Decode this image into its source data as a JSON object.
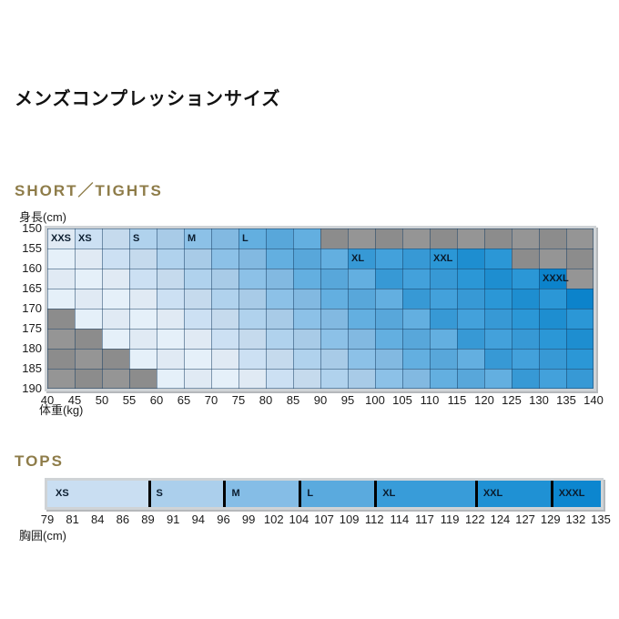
{
  "title": "メンズコンプレッションサイズ",
  "na_color": "#8f8f8f",
  "sizes": [
    {
      "name": "XXS",
      "color": "#e4eff9"
    },
    {
      "name": "XS",
      "color": "#c9def2"
    },
    {
      "name": "S",
      "color": "#abcfec"
    },
    {
      "name": "M",
      "color": "#85bde6"
    },
    {
      "name": "L",
      "color": "#5aaade"
    },
    {
      "name": "XL",
      "color": "#389cd9"
    },
    {
      "name": "XXL",
      "color": "#1f91d4"
    },
    {
      "name": "XXXL",
      "color": "#0c86cf"
    }
  ],
  "short_tights": {
    "heading": "SHORT／TIGHTS",
    "y_axis_label": "身長(cm)",
    "x_axis_label": "体重(kg)"
  },
  "tops": {
    "heading": "TOPS",
    "x_axis_label": "胸囲(cm)"
  },
  "chart_data": [
    {
      "id": "short_tights",
      "type": "heatmap",
      "title": "SHORT／TIGHTS",
      "xlabel": "体重(kg)",
      "ylabel": "身長(cm)",
      "x_ticks": [
        40,
        45,
        50,
        55,
        60,
        65,
        70,
        75,
        80,
        85,
        90,
        95,
        100,
        105,
        110,
        115,
        120,
        125,
        130,
        135,
        140
      ],
      "y_ticks": [
        150,
        155,
        160,
        165,
        170,
        175,
        180,
        185,
        190
      ],
      "legend": [
        "XXS",
        "XS",
        "S",
        "M",
        "L",
        "XL",
        "XXL",
        "XXXL"
      ],
      "na_meaning": "no size available (gray)",
      "rows": [
        {
          "height": "150-155",
          "segments": [
            [
              "XXS",
              40,
              45
            ],
            [
              "XS",
              45,
              55
            ],
            [
              "S",
              55,
              65
            ],
            [
              "M",
              65,
              75
            ],
            [
              "L",
              75,
              90
            ],
            [
              "NA",
              90,
              140
            ]
          ]
        },
        {
          "height": "155-160",
          "segments": [
            [
              "XXS",
              40,
              50
            ],
            [
              "XS",
              50,
              60
            ],
            [
              "S",
              60,
              70
            ],
            [
              "M",
              70,
              80
            ],
            [
              "L",
              80,
              95
            ],
            [
              "XL",
              95,
              110
            ],
            [
              "XXL",
              110,
              125
            ],
            [
              "NA",
              125,
              140
            ]
          ]
        },
        {
          "height": "160-165",
          "segments": [
            [
              "XXS",
              40,
              55
            ],
            [
              "XS",
              55,
              65
            ],
            [
              "S",
              65,
              75
            ],
            [
              "M",
              75,
              85
            ],
            [
              "L",
              85,
              100
            ],
            [
              "XL",
              100,
              115
            ],
            [
              "XXL",
              115,
              130
            ],
            [
              "XXXL",
              130,
              135
            ],
            [
              "NA",
              135,
              140
            ]
          ]
        },
        {
          "height": "165-170",
          "segments": [
            [
              "XXS",
              40,
              60
            ],
            [
              "XS",
              60,
              70
            ],
            [
              "S",
              70,
              80
            ],
            [
              "M",
              80,
              90
            ],
            [
              "L",
              90,
              105
            ],
            [
              "XL",
              105,
              120
            ],
            [
              "XXL",
              120,
              135
            ],
            [
              "XXXL",
              135,
              140
            ]
          ]
        },
        {
          "height": "170-175",
          "segments": [
            [
              "NA",
              40,
              45
            ],
            [
              "XXS",
              45,
              65
            ],
            [
              "XS",
              65,
              75
            ],
            [
              "S",
              75,
              85
            ],
            [
              "M",
              85,
              95
            ],
            [
              "L",
              95,
              110
            ],
            [
              "XL",
              110,
              125
            ],
            [
              "XXL",
              125,
              140
            ]
          ]
        },
        {
          "height": "175-180",
          "segments": [
            [
              "NA",
              40,
              50
            ],
            [
              "XXS",
              50,
              70
            ],
            [
              "XS",
              70,
              80
            ],
            [
              "S",
              80,
              90
            ],
            [
              "M",
              90,
              100
            ],
            [
              "L",
              100,
              115
            ],
            [
              "XL",
              115,
              130
            ],
            [
              "XXL",
              130,
              140
            ]
          ]
        },
        {
          "height": "180-185",
          "segments": [
            [
              "NA",
              40,
              55
            ],
            [
              "XXS",
              55,
              75
            ],
            [
              "XS",
              75,
              85
            ],
            [
              "S",
              85,
              95
            ],
            [
              "M",
              95,
              105
            ],
            [
              "L",
              105,
              120
            ],
            [
              "XL",
              120,
              135
            ],
            [
              "XXL",
              135,
              140
            ]
          ]
        },
        {
          "height": "185-190",
          "segments": [
            [
              "NA",
              40,
              60
            ],
            [
              "XXS",
              60,
              80
            ],
            [
              "XS",
              80,
              90
            ],
            [
              "S",
              90,
              100
            ],
            [
              "M",
              100,
              110
            ],
            [
              "L",
              110,
              125
            ],
            [
              "XL",
              125,
              140
            ]
          ]
        }
      ],
      "size_labels": [
        {
          "size": "XXS",
          "row": 0,
          "weight": 40
        },
        {
          "size": "XS",
          "row": 0,
          "weight": 45
        },
        {
          "size": "S",
          "row": 0,
          "weight": 55
        },
        {
          "size": "M",
          "row": 0,
          "weight": 65
        },
        {
          "size": "L",
          "row": 0,
          "weight": 75
        },
        {
          "size": "XL",
          "row": 1,
          "weight": 95
        },
        {
          "size": "XXL",
          "row": 1,
          "weight": 110
        },
        {
          "size": "XXXL",
          "row": 2,
          "weight": 130
        }
      ]
    },
    {
      "id": "tops",
      "type": "bar",
      "title": "TOPS",
      "xlabel": "胸囲(cm)",
      "ticks": [
        79,
        81,
        84,
        86,
        89,
        91,
        94,
        96,
        99,
        102,
        104,
        107,
        109,
        112,
        114,
        117,
        119,
        122,
        124,
        127,
        129,
        132,
        135
      ],
      "segments": [
        [
          "XS",
          79,
          89
        ],
        [
          "S",
          89,
          96
        ],
        [
          "M",
          96,
          104
        ],
        [
          "L",
          104,
          112
        ],
        [
          "XL",
          112,
          122
        ],
        [
          "XXL",
          122,
          129
        ],
        [
          "XXXL",
          129,
          135
        ]
      ]
    }
  ]
}
